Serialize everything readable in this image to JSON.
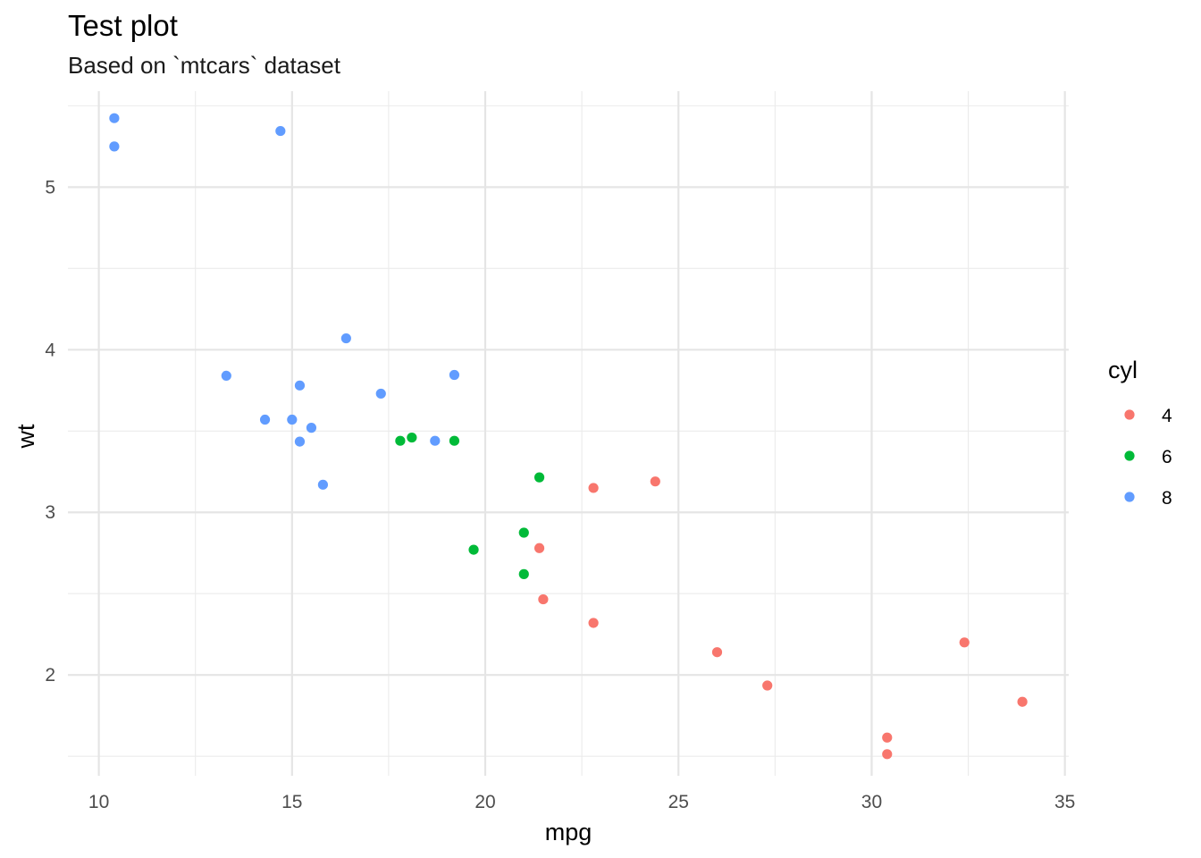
{
  "chart_data": {
    "type": "scatter",
    "title": "Test plot",
    "subtitle": "Based on `mtcars` dataset",
    "xlabel": "mpg",
    "ylabel": "wt",
    "xlim": [
      9.2,
      35.1
    ],
    "ylim": [
      1.38,
      5.59
    ],
    "xticks": [
      10,
      15,
      20,
      25,
      30,
      35
    ],
    "yticks": [
      2,
      3,
      4,
      5
    ],
    "xtick_labels": [
      "10",
      "15",
      "20",
      "25",
      "30",
      "35"
    ],
    "ytick_labels": [
      "2",
      "3",
      "4",
      "5"
    ],
    "grid": true,
    "legend": {
      "title": "cyl",
      "position": "right"
    },
    "series": [
      {
        "name": "4",
        "color": "#F8766D",
        "points": [
          {
            "x": 22.8,
            "y": 2.32
          },
          {
            "x": 24.4,
            "y": 3.19
          },
          {
            "x": 22.8,
            "y": 3.15
          },
          {
            "x": 32.4,
            "y": 2.2
          },
          {
            "x": 30.4,
            "y": 1.615
          },
          {
            "x": 33.9,
            "y": 1.835
          },
          {
            "x": 21.5,
            "y": 2.465
          },
          {
            "x": 27.3,
            "y": 1.935
          },
          {
            "x": 26.0,
            "y": 2.14
          },
          {
            "x": 30.4,
            "y": 1.513
          },
          {
            "x": 21.4,
            "y": 2.78
          }
        ]
      },
      {
        "name": "6",
        "color": "#00BA38",
        "points": [
          {
            "x": 21.0,
            "y": 2.62
          },
          {
            "x": 21.0,
            "y": 2.875
          },
          {
            "x": 21.4,
            "y": 3.215
          },
          {
            "x": 18.1,
            "y": 3.46
          },
          {
            "x": 19.2,
            "y": 3.44
          },
          {
            "x": 17.8,
            "y": 3.44
          },
          {
            "x": 19.7,
            "y": 2.77
          }
        ]
      },
      {
        "name": "8",
        "color": "#619CFF",
        "points": [
          {
            "x": 18.7,
            "y": 3.44
          },
          {
            "x": 14.3,
            "y": 3.57
          },
          {
            "x": 16.4,
            "y": 4.07
          },
          {
            "x": 17.3,
            "y": 3.73
          },
          {
            "x": 15.2,
            "y": 3.78
          },
          {
            "x": 10.4,
            "y": 5.25
          },
          {
            "x": 10.4,
            "y": 5.424
          },
          {
            "x": 14.7,
            "y": 5.345
          },
          {
            "x": 15.5,
            "y": 3.52
          },
          {
            "x": 15.2,
            "y": 3.435
          },
          {
            "x": 13.3,
            "y": 3.84
          },
          {
            "x": 19.2,
            "y": 3.845
          },
          {
            "x": 15.8,
            "y": 3.17
          },
          {
            "x": 15.0,
            "y": 3.57
          }
        ]
      }
    ]
  }
}
